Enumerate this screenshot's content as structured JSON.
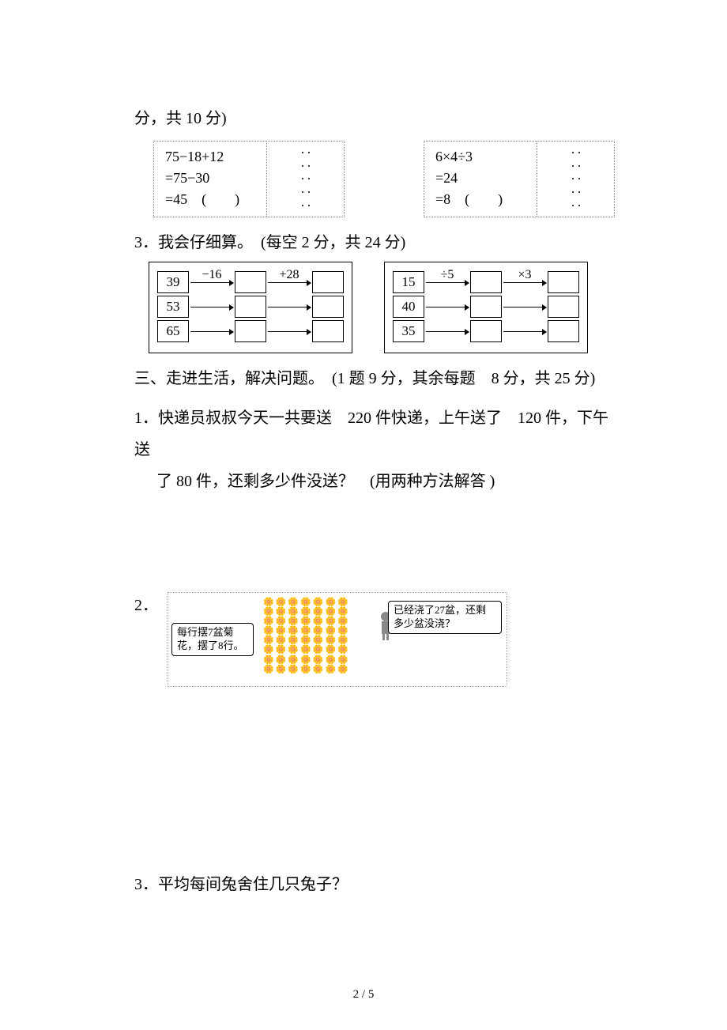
{
  "top_fragment": "分，共 10 分)",
  "judge": {
    "left": {
      "l1": "75−18+12",
      "l2": "=75−30",
      "l3": "=45　(　　)"
    },
    "right": {
      "l1": "6×4÷3",
      "l2": "=24",
      "l3": "=8　(　　)"
    }
  },
  "q3_heading": "3．我会仔细算。　(每空 2 分，共 24 分)",
  "flows": {
    "left": {
      "op1": "−16",
      "op2": "+28",
      "starts": [
        "39",
        "53",
        "65"
      ]
    },
    "right": {
      "op1": "÷5",
      "op2": "×3",
      "starts": [
        "15",
        "40",
        "35"
      ]
    }
  },
  "section3_heading": "三、走进生活，解决问题。　(1 题 9 分，其余每题　8 分，共 25 分)",
  "s3_q1_l1": "1．快递员叔叔今天一共要送　220 件快递，上午送了　120 件，下午送",
  "s3_q1_l2": "了 80 件，还剩多少件没送？　(用两种方法解答 )",
  "s3_q2_num": "2．",
  "s3_q2_speech_left": "每行摆7盆菊\n花，摆了8行。",
  "s3_q2_speech_right": "已经浇了27盆，还剩\n多少盆没浇？",
  "s3_q3": "3．平均每间兔舍住几只兔子？",
  "footer": "2 / 5"
}
